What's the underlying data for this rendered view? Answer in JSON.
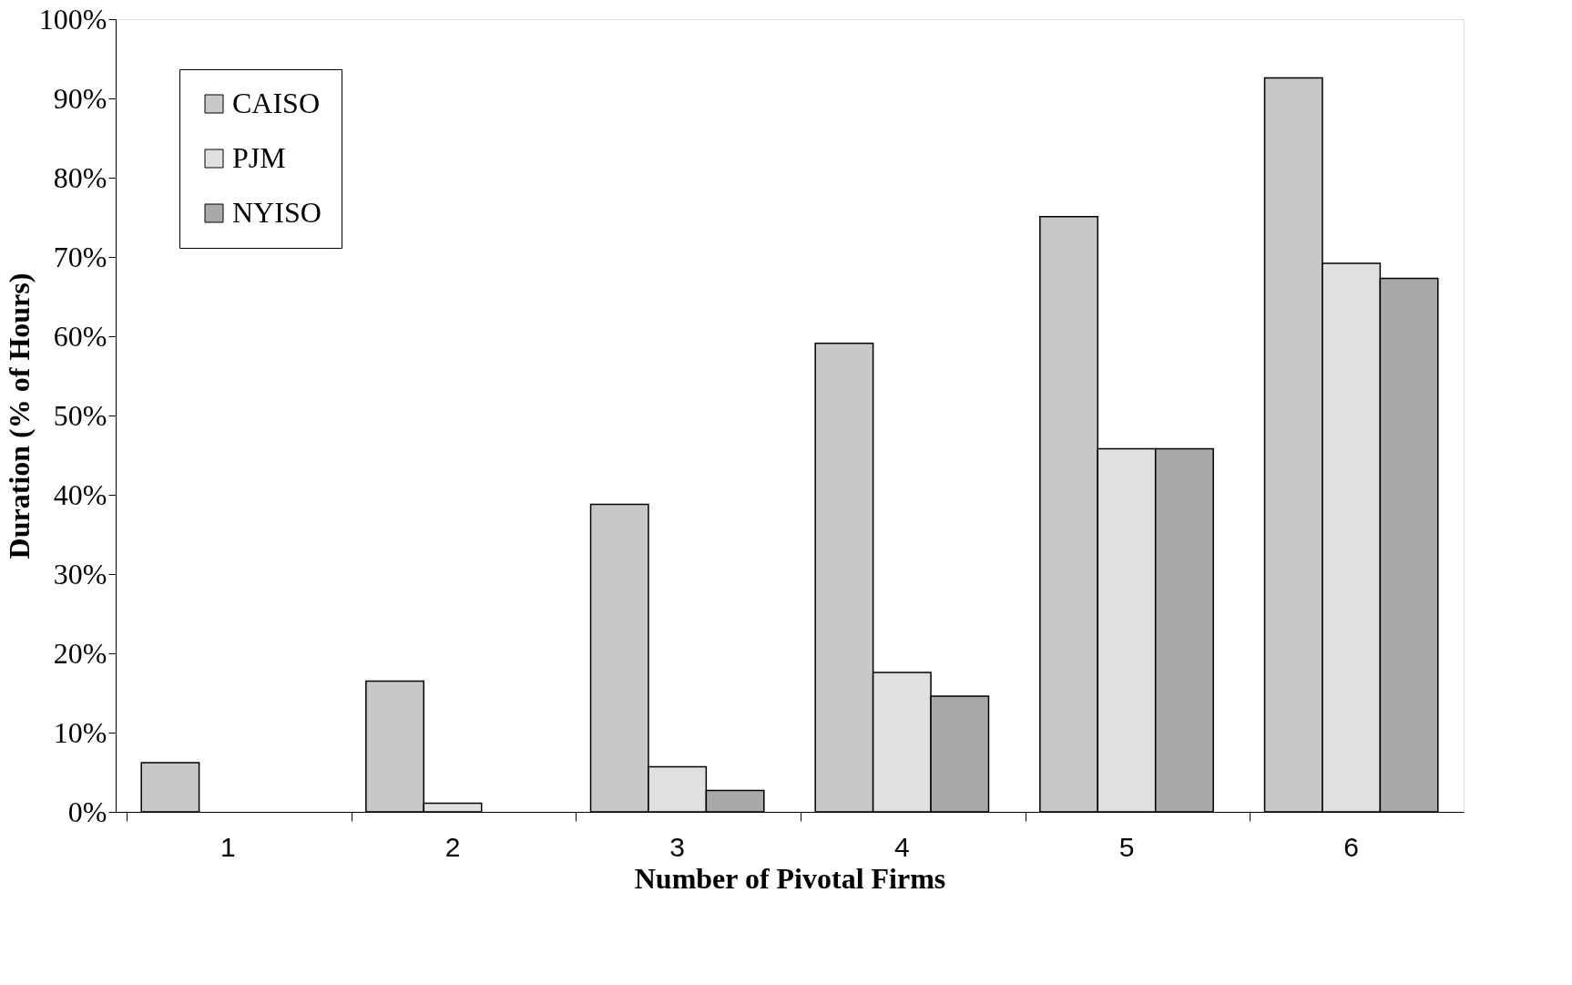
{
  "chart_data": {
    "type": "bar",
    "xlabel": "Number of Pivotal Firms",
    "ylabel": "Duration (% of Hours)",
    "categories": [
      "1",
      "2",
      "3",
      "4",
      "5",
      "6"
    ],
    "series": [
      {
        "name": "CAISO",
        "color": "#c8c8c8",
        "values": [
          6.2,
          16.5,
          38.8,
          59.1,
          75.1,
          92.6
        ]
      },
      {
        "name": "PJM",
        "color": "#e0e0e0",
        "values": [
          null,
          1.1,
          5.7,
          17.6,
          45.8,
          69.2
        ]
      },
      {
        "name": "NYISO",
        "color": "#a9a9a9",
        "values": [
          null,
          null,
          2.7,
          14.6,
          45.8,
          67.3
        ]
      }
    ],
    "ylim": [
      0,
      100
    ],
    "yticks": [
      {
        "value": 0,
        "label": "0%"
      },
      {
        "value": 10,
        "label": "10%"
      },
      {
        "value": 20,
        "label": "20%"
      },
      {
        "value": 30,
        "label": "30%"
      },
      {
        "value": 40,
        "label": "40%"
      },
      {
        "value": 50,
        "label": "50%"
      },
      {
        "value": 60,
        "label": "60%"
      },
      {
        "value": 70,
        "label": "70%"
      },
      {
        "value": 80,
        "label": "80%"
      },
      {
        "value": 90,
        "label": "90%"
      },
      {
        "value": 100,
        "label": "100%"
      }
    ],
    "grid": false,
    "legend": "top left"
  }
}
